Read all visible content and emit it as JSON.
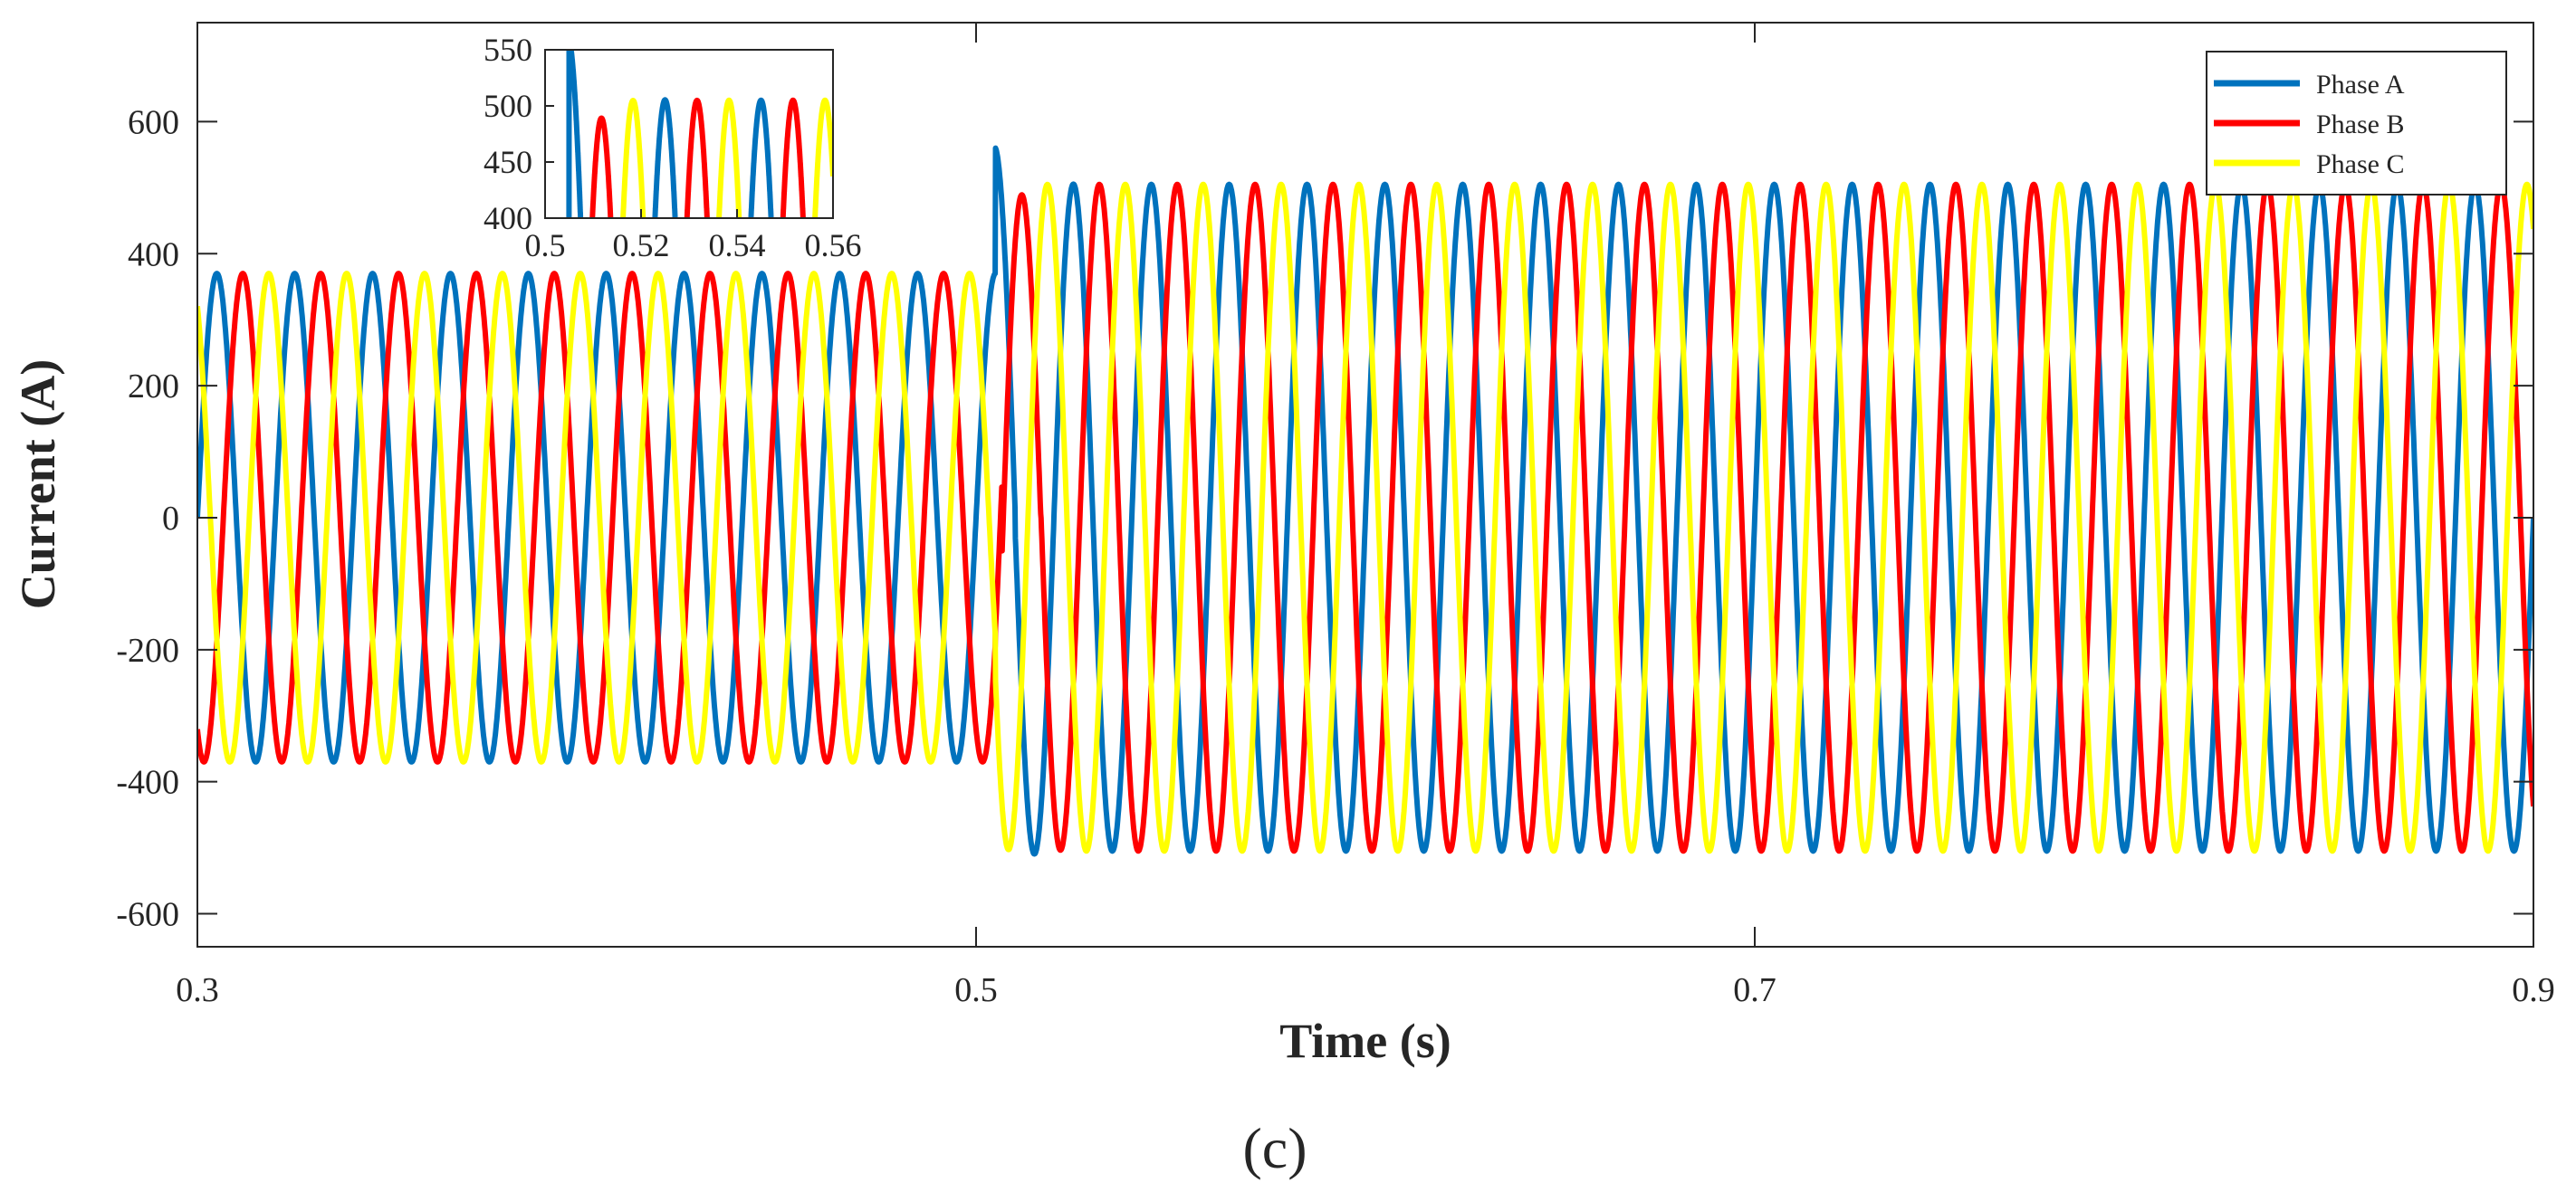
{
  "chart_data": {
    "type": "line",
    "xlabel": "Time (s)",
    "ylabel": "Current (A)",
    "caption": "(c)",
    "xlim": [
      0.3,
      0.9
    ],
    "ylim": [
      -650,
      750
    ],
    "x_ticks": [
      0.3,
      0.5,
      0.7,
      0.9
    ],
    "y_ticks": [
      -600,
      -400,
      -200,
      0,
      200,
      400,
      600
    ],
    "grid": false,
    "legend_position": "top-right",
    "frequency_hz": 50,
    "series": [
      {
        "name": "Phase A",
        "color": "#0072BD",
        "phase_deg": 0,
        "amplitude_before": 370,
        "amplitude_after": 505,
        "transient_peak": 560
      },
      {
        "name": "Phase B",
        "color": "#FF0000",
        "phase_deg": -120,
        "amplitude_before": 370,
        "amplitude_after": 505,
        "transient_peak": -420
      },
      {
        "name": "Phase C",
        "color": "#FFFF00",
        "phase_deg": 120,
        "amplitude_before": 370,
        "amplitude_after": 505,
        "transient_peak": -500
      }
    ],
    "step_time": 0.505,
    "inset": {
      "xlim": [
        0.5,
        0.56
      ],
      "ylim": [
        400,
        550
      ],
      "x_ticks": [
        0.5,
        0.52,
        0.54,
        0.56
      ],
      "x_tick_labels": [
        "0.5",
        "0.52",
        "0.54",
        "0.56"
      ],
      "y_ticks": [
        400,
        450,
        500,
        550
      ]
    }
  }
}
